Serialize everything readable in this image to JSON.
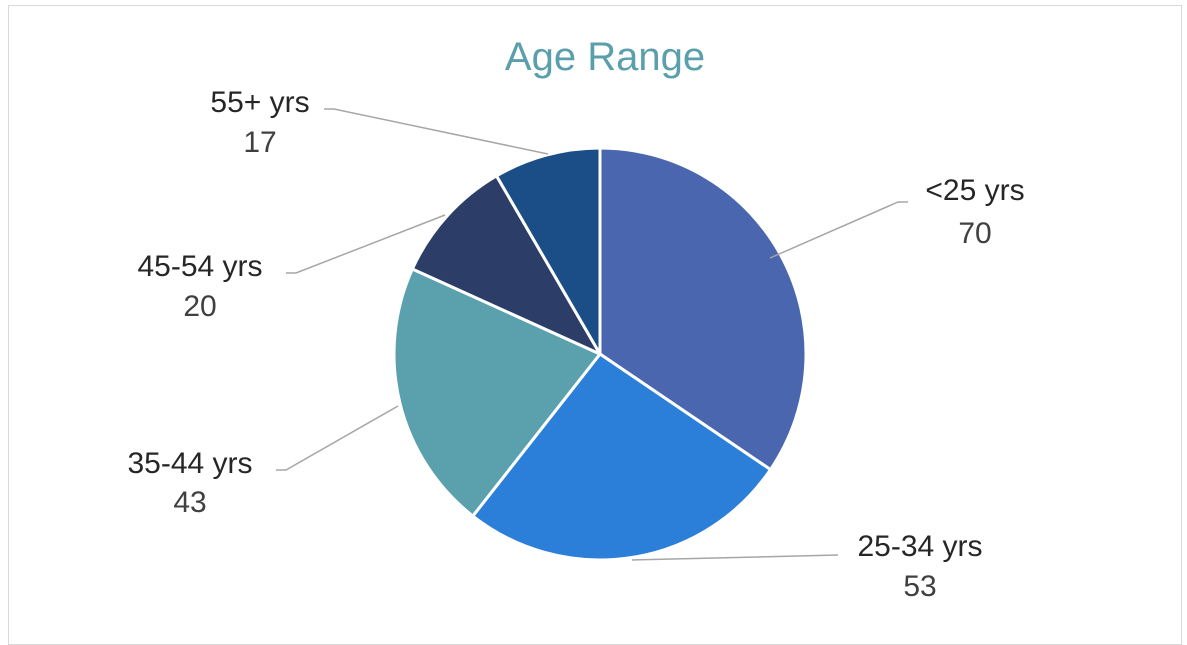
{
  "chart_data": {
    "type": "pie",
    "title": "Age Range",
    "categories": [
      "<25 yrs",
      "25-34 yrs",
      "35-44 yrs",
      "45-54 yrs",
      "55+ yrs"
    ],
    "values": [
      70,
      53,
      43,
      20,
      17
    ],
    "colors": [
      "#4a66ae",
      "#2b7fd8",
      "#5aa1ad",
      "#2c3e68",
      "#1b4e86"
    ],
    "start_angle_deg": 0,
    "direction": "clockwise",
    "legend": "none",
    "data_labels": "category and value, outside with leader lines"
  }
}
